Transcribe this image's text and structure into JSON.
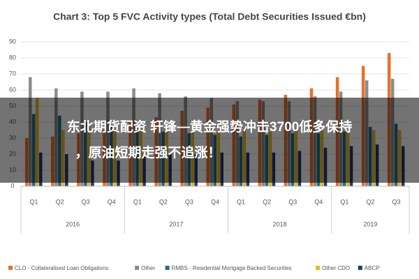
{
  "chart_data": {
    "type": "bar",
    "title": "Chart 3: Top 5 FVC Activity types (Total Debt Securities Issued €bn)",
    "categories": [
      "Q1",
      "Q2",
      "Q3",
      "Q4",
      "Q1",
      "Q2",
      "Q3",
      "Q4",
      "Q1",
      "Q2",
      "Q3",
      "Q4",
      "Q1",
      "Q2",
      "Q3"
    ],
    "x_groups": [
      {
        "label": "2016",
        "count": 4
      },
      {
        "label": "2017",
        "count": 4
      },
      {
        "label": "2018",
        "count": 4
      },
      {
        "label": "2019",
        "count": 3
      }
    ],
    "series": [
      {
        "name": "CLO - Collateralised Loan Obligations",
        "color": "#e8702a",
        "values": [
          30,
          31,
          33,
          35,
          40,
          43,
          47,
          49,
          51,
          54,
          57,
          61,
          68,
          75,
          83
        ]
      },
      {
        "name": "Other",
        "color": "#8c8c8c",
        "values": [
          68,
          61,
          59,
          59,
          61,
          58,
          56,
          55,
          53,
          53,
          53,
          56,
          59,
          66,
          67
        ]
      },
      {
        "name": "RMBS - Residential Mortgage Backed Securities",
        "color": "#1f6f8b",
        "values": [
          45,
          44,
          40,
          38,
          35,
          34,
          33,
          32,
          31,
          32,
          33,
          33,
          34,
          37,
          39
        ]
      },
      {
        "name": "Other CDO",
        "color": "#f0b323",
        "values": [
          55,
          35,
          37,
          36,
          36,
          35,
          34,
          34,
          35,
          34,
          35,
          35,
          34,
          35,
          35
        ]
      },
      {
        "name": "ABCP",
        "color": "#1f3b73",
        "values": [
          21,
          20,
          16,
          16,
          19,
          20,
          20,
          21,
          21,
          21,
          22,
          24,
          25,
          26,
          25
        ]
      }
    ],
    "ylim": [
      0,
      90
    ],
    "yticks": [
      0,
      10,
      20,
      30,
      40,
      50,
      60,
      70,
      80,
      90
    ],
    "grid": true,
    "legend": "bottom"
  },
  "overlay_text": [
    "东北期货配资 轩锋—黄金强势冲击3700低多保持",
    "，原油短期走强不追涨！"
  ]
}
